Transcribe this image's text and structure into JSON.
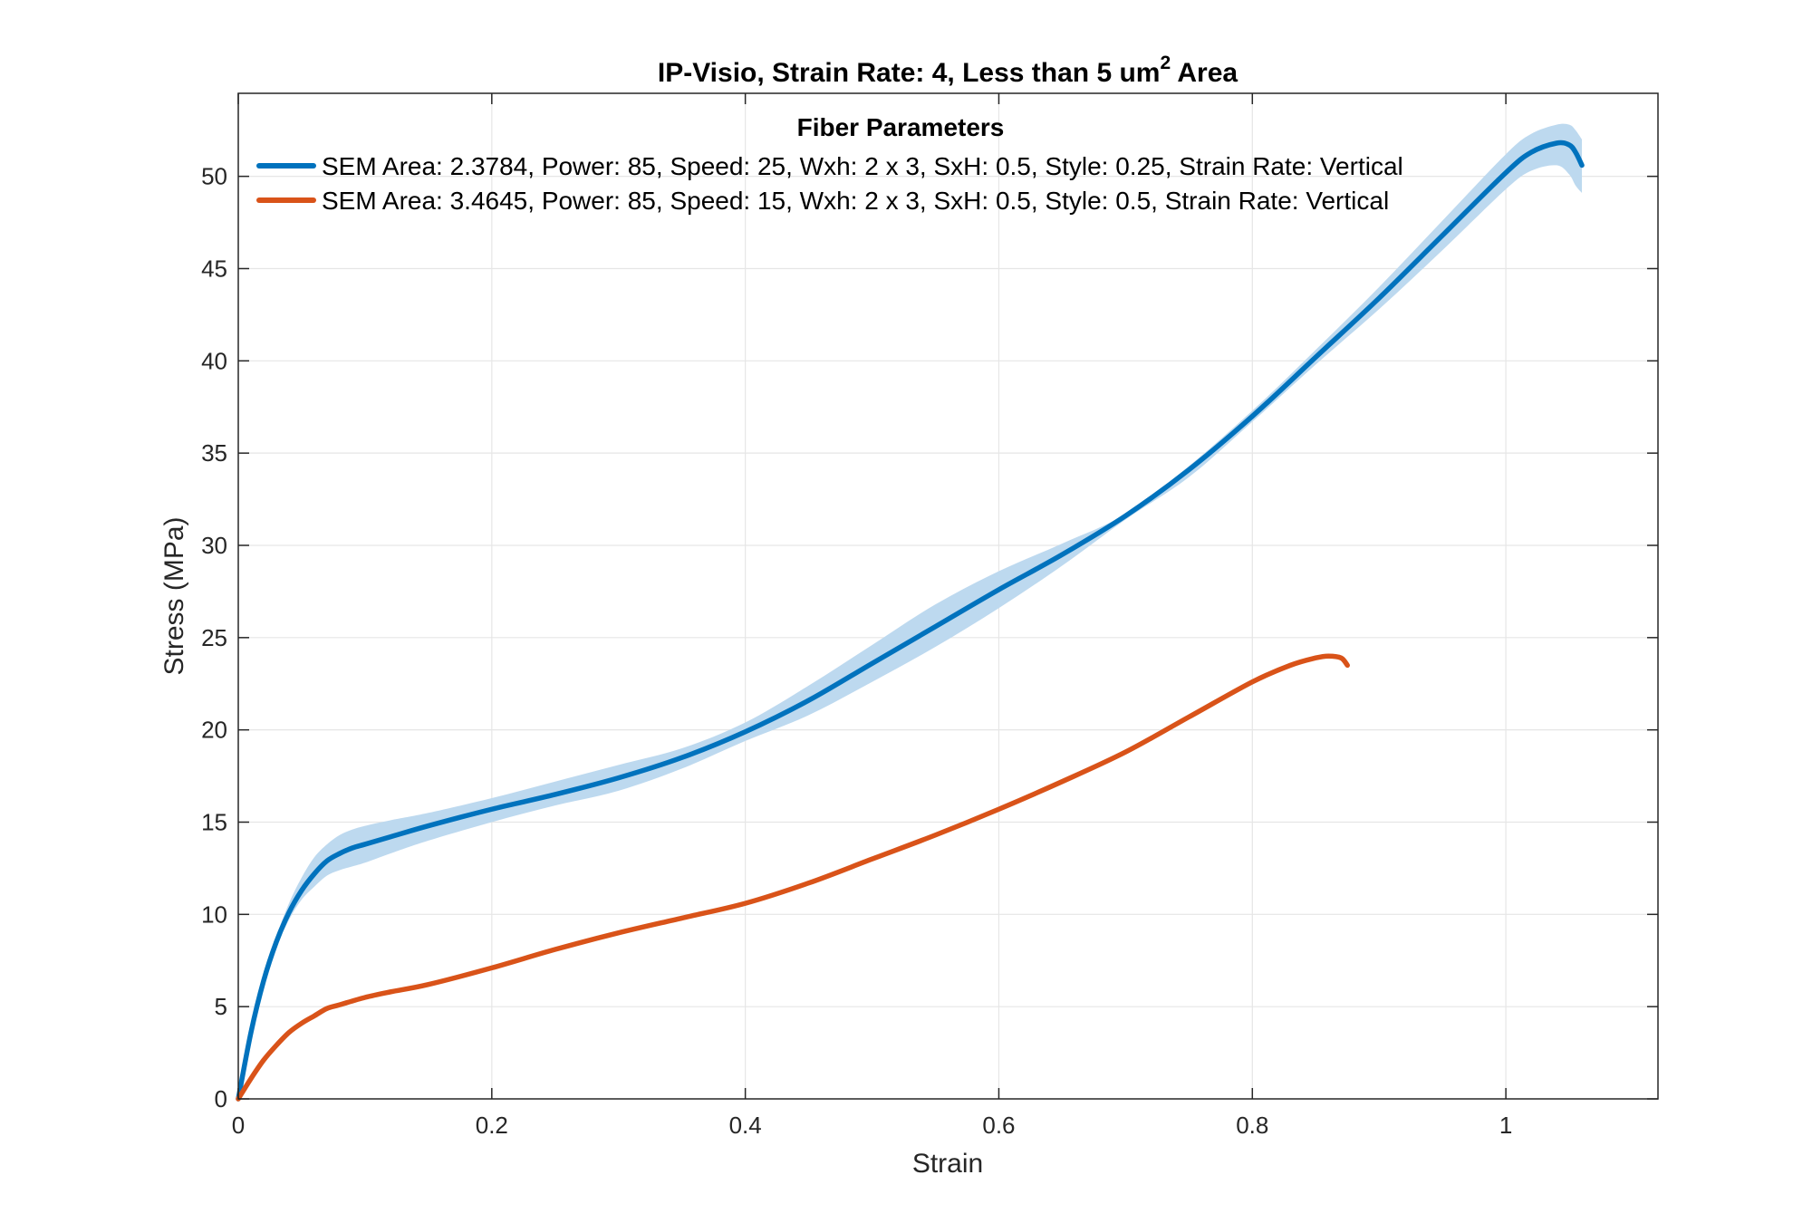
{
  "chart_data": {
    "type": "line",
    "title": {
      "prefix": "IP-Visio, Strain Rate: 4, Less than 5 um",
      "superscript": "2",
      "suffix": " Area"
    },
    "xlabel": "Strain",
    "ylabel": "Stress (MPa)",
    "xlim": [
      0,
      1.12
    ],
    "ylim": [
      0,
      54.5
    ],
    "xticks": [
      0,
      0.2,
      0.4,
      0.6,
      0.8,
      1
    ],
    "xtick_labels": [
      "0",
      "0.2",
      "0.4",
      "0.6",
      "0.8",
      "1"
    ],
    "yticks": [
      0,
      5,
      10,
      15,
      20,
      25,
      30,
      35,
      40,
      45,
      50
    ],
    "ytick_labels": [
      "0",
      "5",
      "10",
      "15",
      "20",
      "25",
      "30",
      "35",
      "40",
      "45",
      "50"
    ],
    "grid": true,
    "legend": {
      "title": "Fiber Parameters",
      "placement": "top"
    },
    "series": [
      {
        "name": "SEM Area: 2.3784, Power: 85, Speed: 25, Wxh: 2 x 3, SxH: 0.5, Style: 0.25, Strain Rate: Vertical",
        "color": "#0072BD",
        "band_color": "#BDD9EF",
        "x": [
          0,
          0.01,
          0.02,
          0.03,
          0.04,
          0.05,
          0.06,
          0.07,
          0.08,
          0.09,
          0.1,
          0.12,
          0.15,
          0.2,
          0.25,
          0.3,
          0.35,
          0.4,
          0.45,
          0.5,
          0.55,
          0.6,
          0.65,
          0.7,
          0.75,
          0.8,
          0.85,
          0.9,
          0.95,
          1.0,
          1.02,
          1.04,
          1.05,
          1.055,
          1.06
        ],
        "y": [
          0,
          3.6,
          6.4,
          8.5,
          10.1,
          11.3,
          12.2,
          12.9,
          13.3,
          13.6,
          13.8,
          14.2,
          14.8,
          15.7,
          16.5,
          17.4,
          18.5,
          19.9,
          21.6,
          23.6,
          25.6,
          27.6,
          29.5,
          31.6,
          34.1,
          37.0,
          40.2,
          43.4,
          46.8,
          50.2,
          51.3,
          51.8,
          51.7,
          51.3,
          50.6
        ],
        "band_upper": [
          0,
          3.7,
          6.6,
          8.8,
          10.6,
          12.0,
          13.1,
          13.8,
          14.3,
          14.6,
          14.8,
          15.1,
          15.5,
          16.3,
          17.2,
          18.1,
          19.0,
          20.4,
          22.4,
          24.6,
          26.8,
          28.6,
          30.1,
          31.7,
          34.3,
          37.3,
          40.6,
          44.0,
          47.6,
          51.2,
          52.3,
          52.8,
          52.8,
          52.5,
          52.0
        ],
        "band_lower": [
          0,
          3.5,
          6.2,
          8.2,
          9.7,
          10.8,
          11.5,
          12.1,
          12.4,
          12.6,
          12.8,
          13.3,
          14.0,
          15.0,
          15.9,
          16.7,
          17.9,
          19.4,
          20.8,
          22.6,
          24.5,
          26.6,
          28.9,
          31.4,
          33.7,
          36.7,
          39.8,
          42.8,
          46.0,
          49.3,
          50.3,
          50.6,
          50.1,
          49.5,
          49.1
        ]
      },
      {
        "name": "SEM Area: 3.4645, Power: 85, Speed: 15, Wxh: 2 x 3, SxH: 0.5, Style: 0.5, Strain Rate: Vertical",
        "color": "#D95319",
        "x": [
          0,
          0.01,
          0.02,
          0.03,
          0.04,
          0.05,
          0.06,
          0.07,
          0.08,
          0.1,
          0.12,
          0.15,
          0.2,
          0.25,
          0.3,
          0.35,
          0.4,
          0.45,
          0.5,
          0.55,
          0.6,
          0.65,
          0.7,
          0.75,
          0.8,
          0.83,
          0.85,
          0.86,
          0.87,
          0.875
        ],
        "y": [
          0,
          1.1,
          2.1,
          2.9,
          3.6,
          4.1,
          4.5,
          4.9,
          5.1,
          5.5,
          5.8,
          6.2,
          7.1,
          8.1,
          9.0,
          9.8,
          10.6,
          11.7,
          13.0,
          14.3,
          15.7,
          17.2,
          18.8,
          20.7,
          22.6,
          23.5,
          23.9,
          24.0,
          23.9,
          23.5
        ]
      }
    ]
  }
}
